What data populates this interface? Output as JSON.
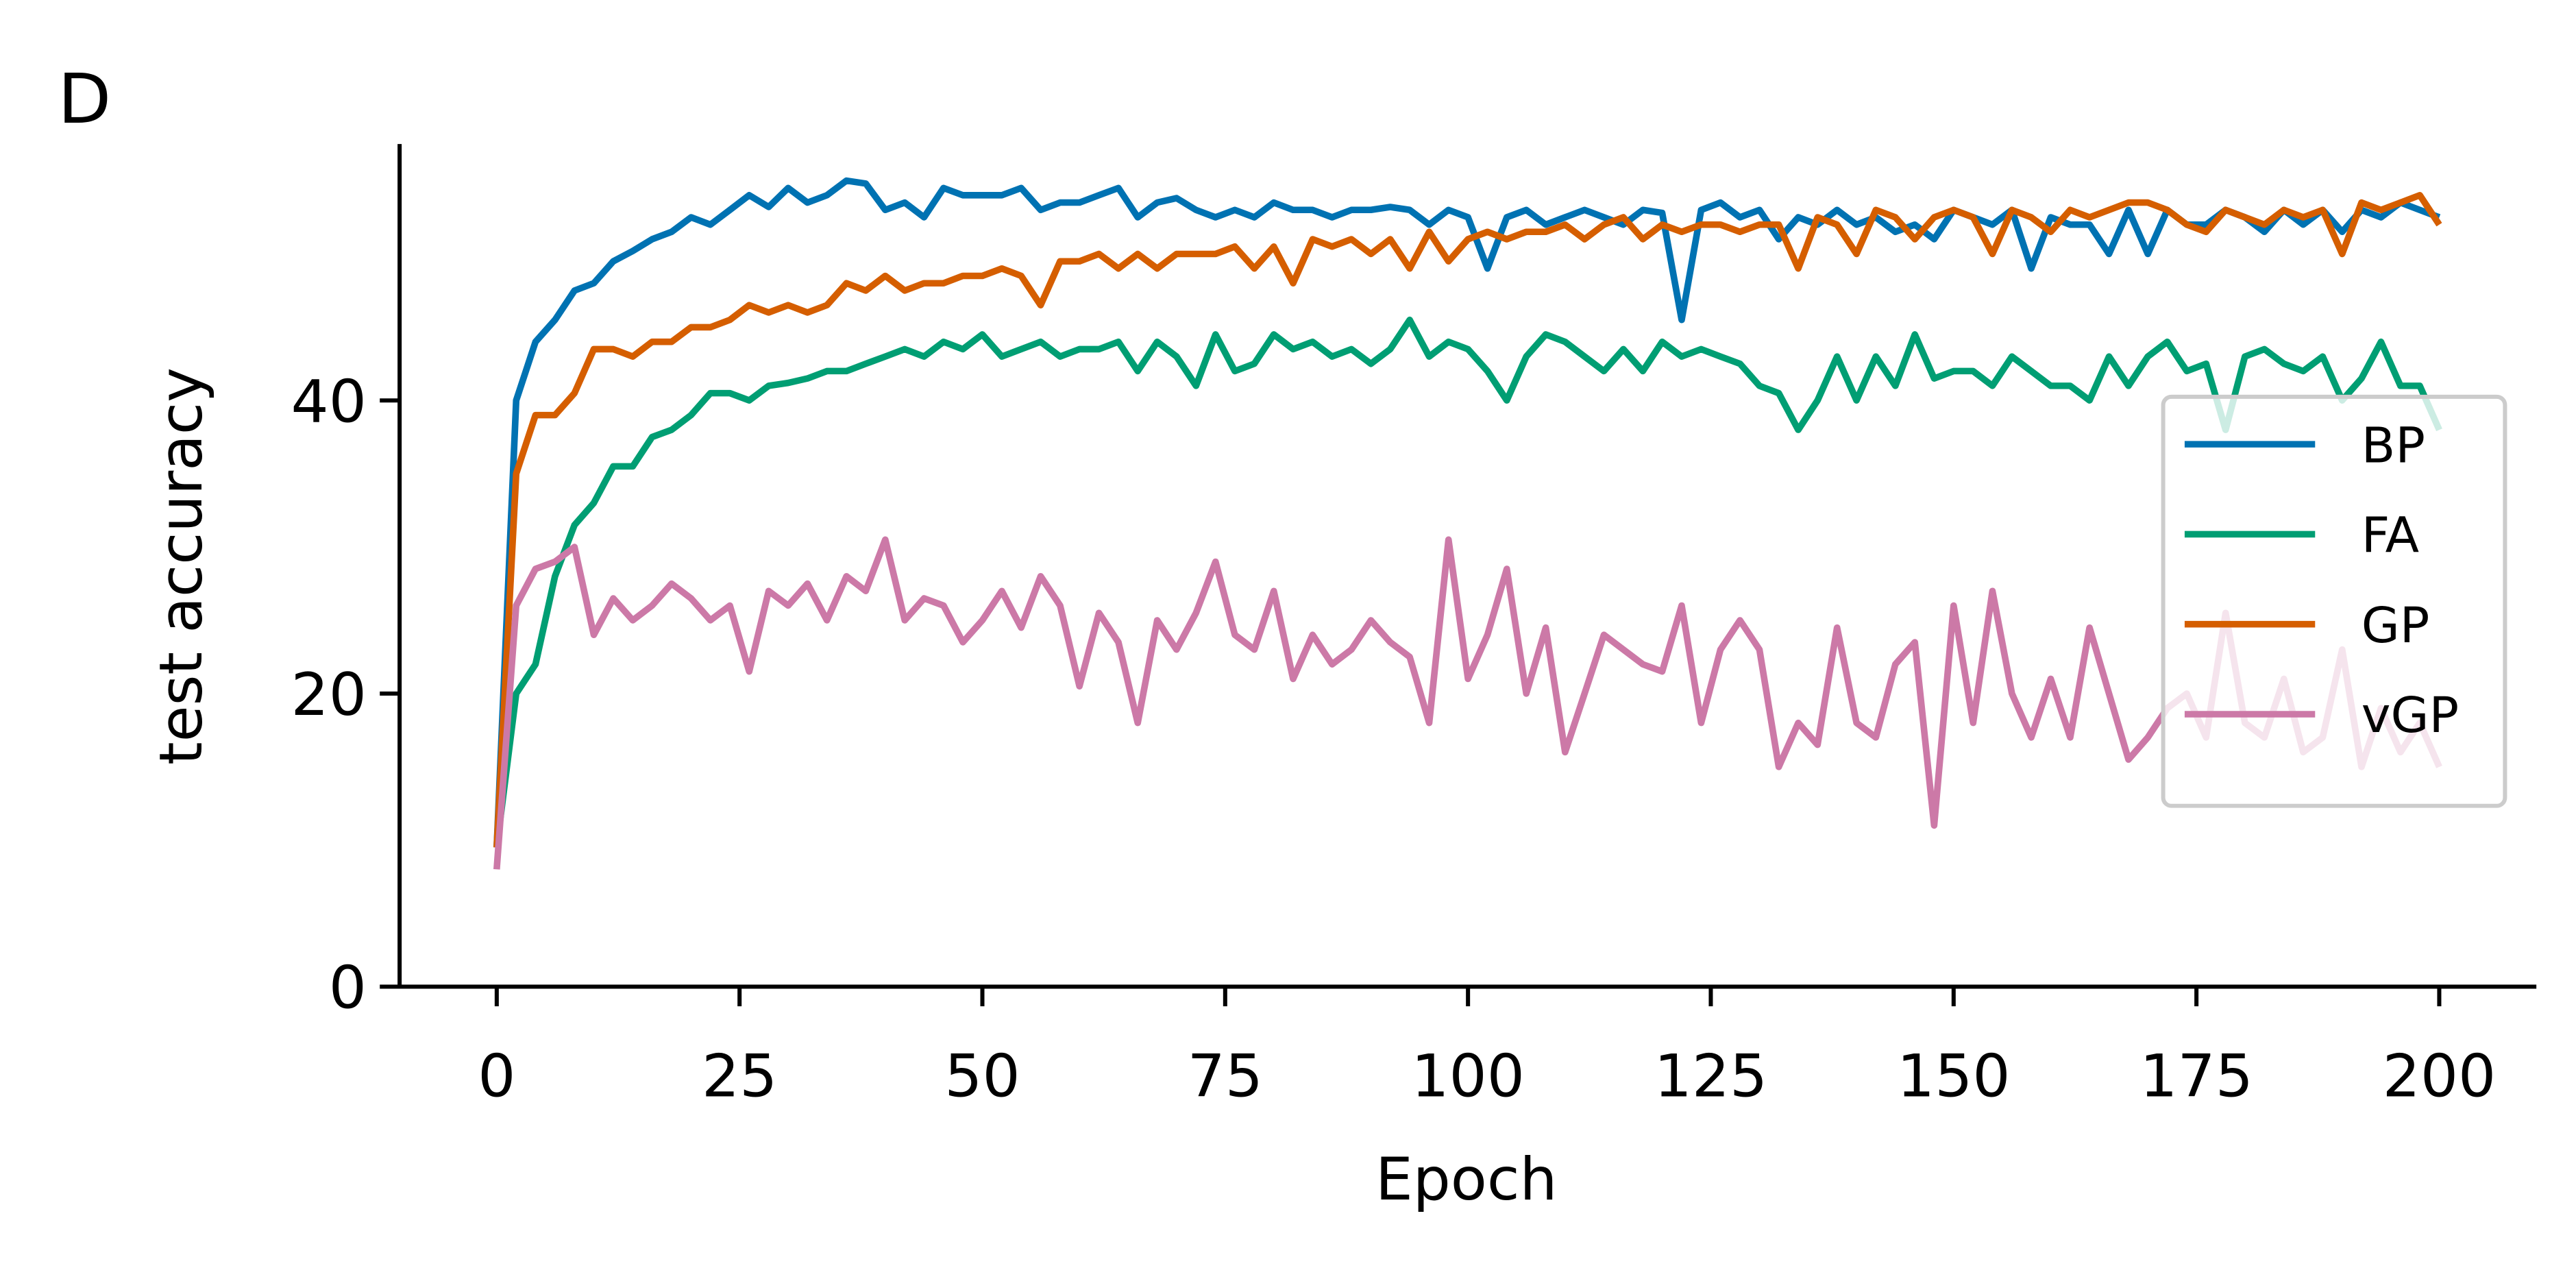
{
  "chart_data": {
    "type": "line",
    "panel_label": "D",
    "xlabel": "Epoch",
    "ylabel": "test accuracy",
    "x": [
      0,
      2,
      4,
      6,
      8,
      10,
      12,
      14,
      16,
      18,
      20,
      22,
      24,
      26,
      28,
      30,
      32,
      34,
      36,
      38,
      40,
      42,
      44,
      46,
      48,
      50,
      52,
      54,
      56,
      58,
      60,
      62,
      64,
      66,
      68,
      70,
      72,
      74,
      76,
      78,
      80,
      82,
      84,
      86,
      88,
      90,
      92,
      94,
      96,
      98,
      100,
      102,
      104,
      106,
      108,
      110,
      112,
      114,
      116,
      118,
      120,
      122,
      124,
      126,
      128,
      130,
      132,
      134,
      136,
      138,
      140,
      142,
      144,
      146,
      148,
      150,
      152,
      154,
      156,
      158,
      160,
      162,
      164,
      166,
      168,
      170,
      172,
      174,
      176,
      178,
      180,
      182,
      184,
      186,
      188,
      190,
      192,
      194,
      196,
      198,
      200
    ],
    "series": [
      {
        "name": "BP",
        "color": "#0072b2",
        "values": [
          9.5,
          40,
          44,
          45.5,
          47.5,
          48,
          49.5,
          50.2,
          51,
          51.5,
          52.5,
          52,
          53,
          54,
          53.2,
          54.5,
          53.5,
          54,
          55,
          54.8,
          53,
          53.5,
          52.5,
          54.5,
          54,
          54,
          54,
          54.5,
          53,
          53.5,
          53.5,
          54,
          54.5,
          52.5,
          53.5,
          53.8,
          53,
          52.5,
          53,
          52.5,
          53.5,
          53,
          53,
          52.5,
          53,
          53,
          53.2,
          53,
          52,
          53,
          52.5,
          49,
          52.5,
          53,
          52,
          52.5,
          53,
          52.5,
          52,
          53,
          52.8,
          45.5,
          53,
          53.5,
          52.5,
          53,
          51,
          52.5,
          52,
          53,
          52,
          52.5,
          51.5,
          52,
          51,
          53,
          52.5,
          52,
          53,
          49,
          52.5,
          52,
          52,
          50,
          53,
          50,
          53,
          52,
          52,
          53,
          52.5,
          51.5,
          53,
          52,
          53,
          51.5,
          53,
          52.5,
          53.5,
          53,
          52.5
        ]
      },
      {
        "name": "FA",
        "color": "#009e73",
        "values": [
          9.5,
          20,
          22,
          28,
          31.5,
          33,
          35.5,
          35.5,
          37.5,
          38,
          39,
          40.5,
          40.5,
          40,
          41,
          41.2,
          41.5,
          42,
          42,
          42.5,
          43,
          43.5,
          43,
          44,
          43.5,
          44.5,
          43,
          43.5,
          44,
          43,
          43.5,
          43.5,
          44,
          42,
          44,
          43,
          41,
          44.5,
          42,
          42.5,
          44.5,
          43.5,
          44,
          43,
          43.5,
          42.5,
          43.5,
          45.5,
          43,
          44,
          43.5,
          42,
          40,
          43,
          44.5,
          44,
          43,
          42,
          43.5,
          42,
          44,
          43,
          43.5,
          43,
          42.5,
          41,
          40.5,
          38,
          40,
          43,
          40,
          43,
          41,
          44.5,
          41.5,
          42,
          42,
          41,
          43,
          42,
          41,
          41,
          40,
          43,
          41,
          43,
          44,
          42,
          42.5,
          38,
          43,
          43.5,
          42.5,
          42,
          43,
          40,
          41.5,
          44,
          41,
          41,
          38
        ]
      },
      {
        "name": "GP",
        "color": "#d55e00",
        "values": [
          9.5,
          35,
          39,
          39,
          40.5,
          43.5,
          43.5,
          43,
          44,
          44,
          45,
          45,
          45.5,
          46.5,
          46,
          46.5,
          46,
          46.5,
          48,
          47.5,
          48.5,
          47.5,
          48,
          48,
          48.5,
          48.5,
          49,
          48.5,
          46.5,
          49.5,
          49.5,
          50,
          49,
          50,
          49,
          50,
          50,
          50,
          50.5,
          49,
          50.5,
          48,
          51,
          50.5,
          51,
          50,
          51,
          49,
          51.5,
          49.5,
          51,
          51.5,
          51,
          51.5,
          51.5,
          52,
          51,
          52,
          52.5,
          51,
          52,
          51.5,
          52,
          52,
          51.5,
          52,
          52,
          49,
          52.5,
          52,
          50,
          53,
          52.5,
          51,
          52.5,
          53,
          52.5,
          50,
          53,
          52.5,
          51.5,
          53,
          52.5,
          53,
          53.5,
          53.5,
          53,
          52,
          51.5,
          53,
          52.5,
          52,
          53,
          52.5,
          53,
          50,
          53.5,
          53,
          53.5,
          54,
          52
        ]
      },
      {
        "name": "vGP",
        "color": "#cc79a7",
        "values": [
          8,
          26,
          28.5,
          29,
          30,
          24,
          26.5,
          25,
          26,
          27.5,
          26.5,
          25,
          26,
          21.5,
          27,
          26,
          27.5,
          25,
          28,
          27,
          30.5,
          25,
          26.5,
          26,
          23.5,
          25,
          27,
          24.5,
          28,
          26,
          20.5,
          25.5,
          23.5,
          18,
          25,
          23,
          25.5,
          29,
          24,
          23,
          27,
          21,
          24,
          22,
          23,
          25,
          23.5,
          22.5,
          18,
          30.5,
          21,
          24,
          28.5,
          20,
          24.5,
          16,
          20,
          24,
          23,
          22,
          21.5,
          26,
          18,
          23,
          25,
          23,
          15,
          18,
          16.5,
          24.5,
          18,
          17,
          22,
          23.5,
          11,
          26,
          18,
          27,
          20,
          17,
          21,
          17,
          24.5,
          20,
          15.5,
          17,
          19,
          20,
          17,
          25.5,
          18,
          17,
          21,
          16,
          17,
          23,
          15,
          19,
          16,
          18,
          15
        ]
      }
    ],
    "xlim": [
      -10,
      210
    ],
    "ylim": [
      0,
      57.5
    ],
    "xticks": [
      0,
      25,
      50,
      75,
      100,
      125,
      150,
      175,
      200
    ],
    "yticks": [
      0,
      20,
      40
    ],
    "legend": "center right"
  }
}
